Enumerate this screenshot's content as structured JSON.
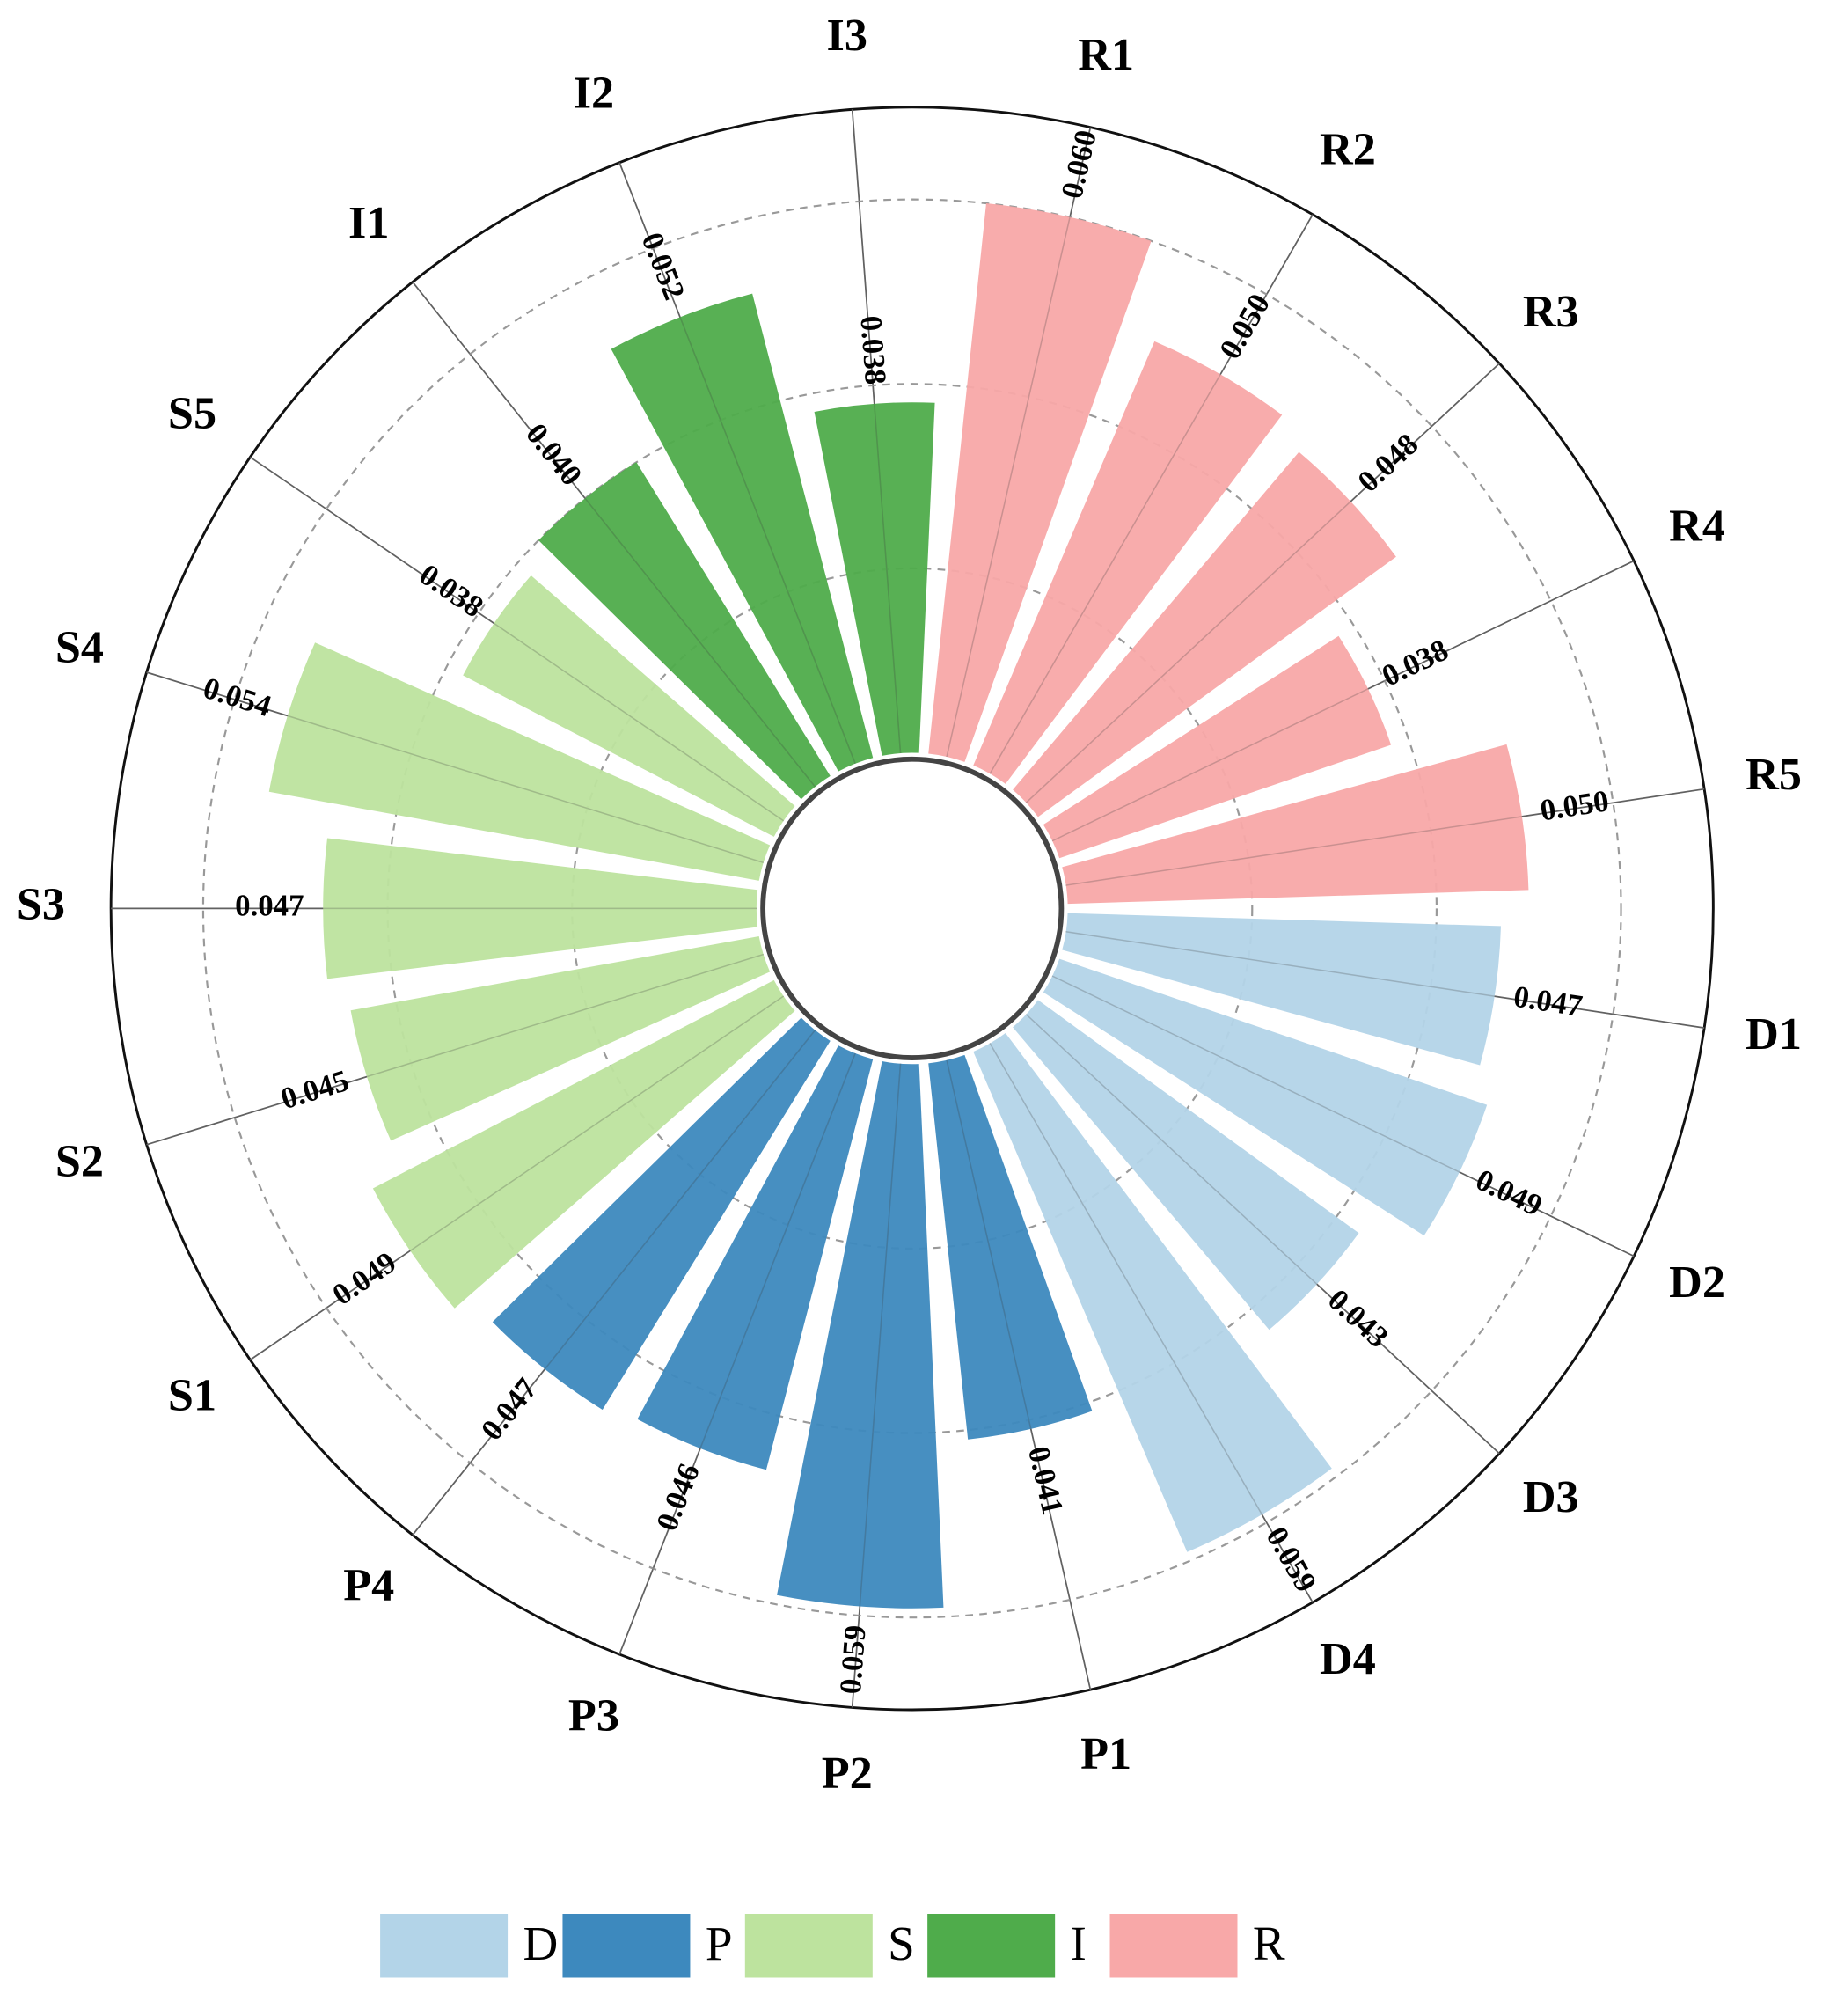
{
  "chart_data": {
    "type": "polar-bar",
    "categories": [
      "R1",
      "R2",
      "R3",
      "R4",
      "R5",
      "D1",
      "D2",
      "D3",
      "D4",
      "P1",
      "P2",
      "P3",
      "P4",
      "S1",
      "S2",
      "S3",
      "S4",
      "S5",
      "I1",
      "I2",
      "I3"
    ],
    "series": [
      {
        "name": "D",
        "color": "#b3d4e8",
        "values": [
          null,
          null,
          null,
          null,
          null,
          0.047,
          0.049,
          0.043,
          0.059,
          null,
          null,
          null,
          null,
          null,
          null,
          null,
          null,
          null,
          null,
          null,
          null
        ],
        "value_labels": [
          null,
          null,
          null,
          null,
          null,
          "0.047",
          "0.049",
          "0.043",
          "0.059",
          null,
          null,
          null,
          null,
          null,
          null,
          null,
          null,
          null,
          null,
          null,
          null
        ]
      },
      {
        "name": "P",
        "color": "#3d89be",
        "values": [
          null,
          null,
          null,
          null,
          null,
          null,
          null,
          null,
          null,
          0.041,
          0.059,
          0.046,
          0.047,
          null,
          null,
          null,
          null,
          null,
          null,
          null,
          null
        ],
        "value_labels": [
          null,
          null,
          null,
          null,
          null,
          null,
          null,
          null,
          null,
          "0.041",
          "0.059",
          "0.046",
          "0.047",
          null,
          null,
          null,
          null,
          null,
          null,
          null,
          null
        ]
      },
      {
        "name": "S",
        "color": "#bde39e",
        "values": [
          null,
          null,
          null,
          null,
          null,
          null,
          null,
          null,
          null,
          null,
          null,
          null,
          null,
          0.049,
          0.045,
          0.047,
          0.054,
          0.038,
          null,
          null,
          null
        ],
        "value_labels": [
          null,
          null,
          null,
          null,
          null,
          null,
          null,
          null,
          null,
          null,
          null,
          null,
          null,
          "0.049",
          "0.045",
          "0.047",
          "0.054",
          "0.038",
          null,
          null,
          null
        ]
      },
      {
        "name": "I",
        "color": "#4fac4b",
        "values": [
          null,
          null,
          null,
          null,
          null,
          null,
          null,
          null,
          null,
          null,
          null,
          null,
          null,
          null,
          null,
          null,
          null,
          null,
          0.04,
          0.052,
          0.038
        ],
        "value_labels": [
          null,
          null,
          null,
          null,
          null,
          null,
          null,
          null,
          null,
          null,
          null,
          null,
          null,
          null,
          null,
          null,
          null,
          null,
          "0.040",
          "0.052",
          "0.038"
        ]
      },
      {
        "name": "R",
        "color": "#f8a8a8",
        "values": [
          0.06,
          0.05,
          0.048,
          0.038,
          0.05,
          null,
          null,
          null,
          null,
          null,
          null,
          null,
          null,
          null,
          null,
          null,
          null,
          null,
          null,
          null,
          null
        ],
        "value_labels": [
          "0.060",
          "0.050",
          "0.048",
          "0.038",
          "0.050",
          null,
          null,
          null,
          null,
          null,
          null,
          null,
          null,
          null,
          null,
          null,
          null,
          null,
          null,
          null,
          null
        ]
      }
    ],
    "ylim": [
      0,
      0.07
    ],
    "yticks": [
      0.02,
      0.04,
      0.06
    ],
    "grid": true
  }
}
